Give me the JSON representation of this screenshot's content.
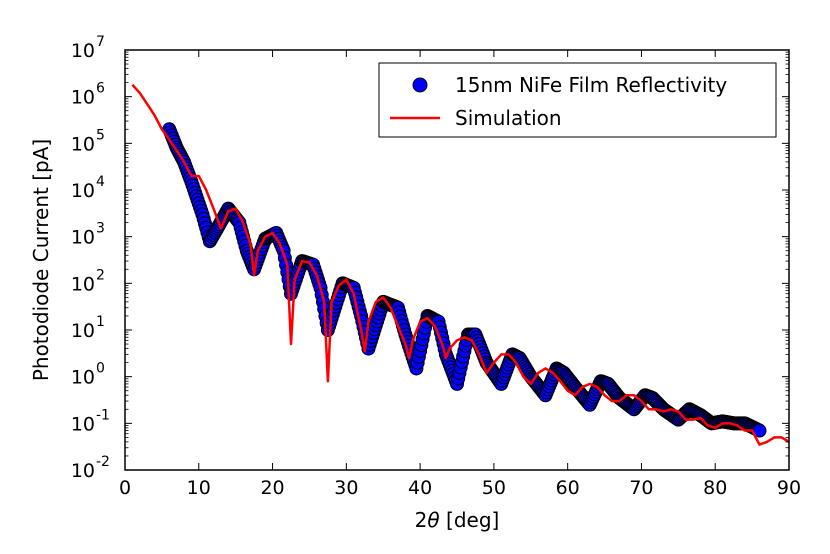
{
  "chart_data": {
    "type": "scatter",
    "title": "",
    "xlabel_prefix": "2",
    "xlabel_symbol": "θ",
    "xlabel_suffix": " [deg]",
    "ylabel": "Photodiode Current [pA]",
    "xlim": [
      0,
      90
    ],
    "ylim_log10": [
      -2,
      7
    ],
    "y_scale": "log",
    "x_ticks": [
      "0",
      "10",
      "20",
      "30",
      "40",
      "50",
      "60",
      "70",
      "80",
      "90"
    ],
    "y_ticks": [
      {
        "base": "10",
        "exp": "-2"
      },
      {
        "base": "10",
        "exp": "-1"
      },
      {
        "base": "10",
        "exp": "0"
      },
      {
        "base": "10",
        "exp": "1"
      },
      {
        "base": "10",
        "exp": "2"
      },
      {
        "base": "10",
        "exp": "3"
      },
      {
        "base": "10",
        "exp": "4"
      },
      {
        "base": "10",
        "exp": "5"
      },
      {
        "base": "10",
        "exp": "6"
      },
      {
        "base": "10",
        "exp": "7"
      }
    ],
    "legend_position": "top-right",
    "series": [
      {
        "name": "15nm NiFe Film Reflectivity",
        "kind": "markers",
        "color": "#0000ff",
        "edge_color": "#000000",
        "x": [
          6,
          7,
          8,
          9,
          10.5,
          11.5,
          12.5,
          14,
          15.5,
          16.5,
          17.5,
          19,
          20.5,
          21.5,
          22.5,
          24,
          25.5,
          26.5,
          27.5,
          29.5,
          31,
          32,
          33,
          35,
          37,
          38,
          39.5,
          41,
          42.5,
          43.5,
          45,
          46.5,
          47.5,
          49,
          51,
          52.5,
          53.5,
          55,
          57,
          58.5,
          59.5,
          61,
          63,
          64.5,
          65.5,
          67,
          69,
          70.5,
          71.5,
          73,
          75,
          76.5,
          78,
          79.5,
          81,
          82.5,
          84,
          86
        ],
        "y": [
          200000,
          80000,
          40000,
          15000,
          3000,
          800,
          1500,
          4000,
          2000,
          500,
          200,
          900,
          1200,
          500,
          60,
          300,
          250,
          80,
          10,
          100,
          80,
          20,
          4,
          40,
          30,
          8,
          1.5,
          20,
          15,
          3,
          0.7,
          8,
          8,
          2,
          0.7,
          3,
          2.5,
          1,
          0.4,
          1.5,
          1.2,
          0.6,
          0.25,
          0.8,
          0.7,
          0.35,
          0.2,
          0.4,
          0.35,
          0.2,
          0.12,
          0.2,
          0.15,
          0.1,
          0.11,
          0.1,
          0.1,
          0.07
        ]
      },
      {
        "name": "Simulation",
        "kind": "line",
        "color": "#ff0000",
        "x": [
          1,
          2,
          3,
          4,
          5,
          6,
          7,
          8,
          9,
          10,
          11,
          12,
          13,
          14,
          15,
          16,
          17,
          17.5,
          18,
          19,
          20,
          21,
          22,
          22.5,
          23,
          24,
          25,
          26,
          27,
          27.5,
          28,
          29,
          30,
          31,
          32,
          32.5,
          33,
          34,
          35,
          36,
          37,
          38,
          38.5,
          39,
          40,
          41,
          42,
          43,
          43.5,
          44,
          45,
          46,
          47,
          48,
          49,
          50,
          51,
          52,
          53,
          54,
          55,
          56,
          57,
          58,
          59,
          60,
          61,
          62,
          63,
          64,
          65,
          66,
          67,
          68,
          69,
          70,
          71,
          72,
          73,
          74,
          75,
          76,
          77,
          78,
          79,
          80,
          81,
          82,
          83,
          84,
          85,
          86,
          87,
          88,
          89,
          90
        ],
        "y": [
          1800000,
          1200000,
          700000,
          400000,
          200000,
          120000,
          70000,
          40000,
          20000,
          20000,
          10000,
          4000,
          1500,
          3500,
          4000,
          2000,
          700,
          150,
          500,
          1000,
          1200,
          700,
          250,
          5,
          120,
          300,
          280,
          150,
          40,
          0.8,
          40,
          90,
          120,
          60,
          10,
          3.5,
          15,
          40,
          50,
          30,
          12,
          5,
          2.5,
          6,
          15,
          18,
          12,
          5,
          2.5,
          4,
          6,
          7,
          6,
          3,
          1.2,
          2,
          3,
          3,
          2,
          1,
          0.7,
          1.2,
          1.5,
          1.2,
          0.8,
          0.5,
          0.4,
          0.6,
          0.7,
          0.6,
          0.4,
          0.3,
          0.3,
          0.4,
          0.4,
          0.3,
          0.2,
          0.2,
          0.18,
          0.2,
          0.18,
          0.12,
          0.12,
          0.13,
          0.09,
          0.08,
          0.1,
          0.1,
          0.09,
          0.07,
          0.07,
          0.035,
          0.04,
          0.05,
          0.05,
          0.04
        ]
      }
    ]
  }
}
